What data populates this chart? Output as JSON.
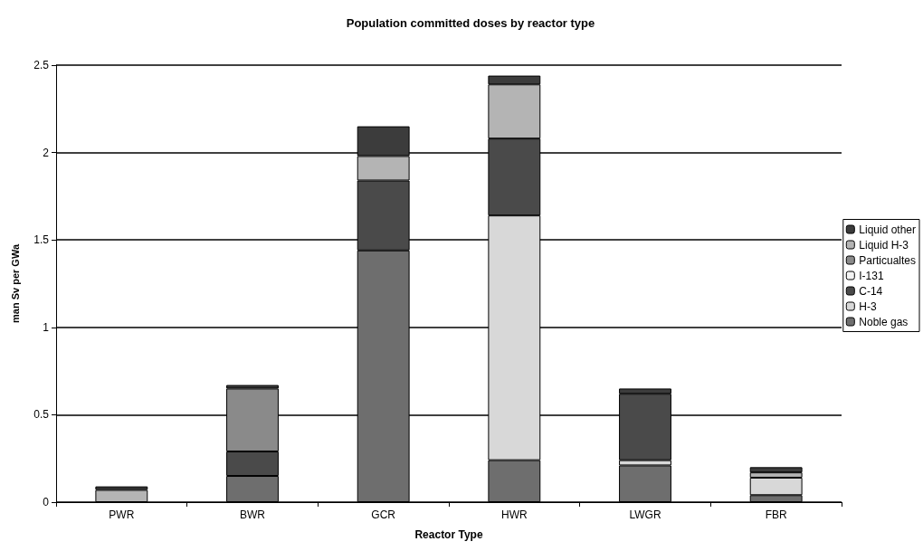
{
  "chart_data": {
    "type": "bar",
    "title": "Population committed doses by reactor type",
    "xlabel": "Reactor Type",
    "ylabel": "man Sv per GWa",
    "categories": [
      "PWR",
      "BWR",
      "GCR",
      "HWR",
      "LWGR",
      "FBR"
    ],
    "stacked": true,
    "ylim": [
      0,
      2.5
    ],
    "yticks": [
      0,
      0.5,
      1,
      1.5,
      2,
      2.5
    ],
    "grid": "y",
    "legend": "right",
    "series": [
      {
        "name": "Noble gas",
        "color": "#6e6e6e",
        "values": [
          null,
          0.15,
          1.44,
          0.24,
          0.21,
          0.04
        ]
      },
      {
        "name": "H-3",
        "color": "#d8d8d8",
        "values": [
          null,
          null,
          null,
          1.4,
          0.03,
          0.1
        ]
      },
      {
        "name": "C-14",
        "color": "#4a4a4a",
        "values": [
          null,
          0.14,
          0.4,
          0.44,
          0.38,
          null
        ]
      },
      {
        "name": "I-131",
        "color": "#f4f4f4",
        "values": [
          null,
          null,
          null,
          null,
          null,
          null
        ]
      },
      {
        "name": "Particualtes",
        "color": "#8a8a8a",
        "values": [
          null,
          0.36,
          null,
          null,
          null,
          null
        ]
      },
      {
        "name": "Liquid H-3",
        "color": "#b4b4b4",
        "values": [
          0.07,
          null,
          0.14,
          0.31,
          null,
          0.03
        ]
      },
      {
        "name": "Liquid other",
        "color": "#3c3c3c",
        "values": [
          0.02,
          0.02,
          0.17,
          0.05,
          0.03,
          0.03
        ]
      }
    ]
  }
}
